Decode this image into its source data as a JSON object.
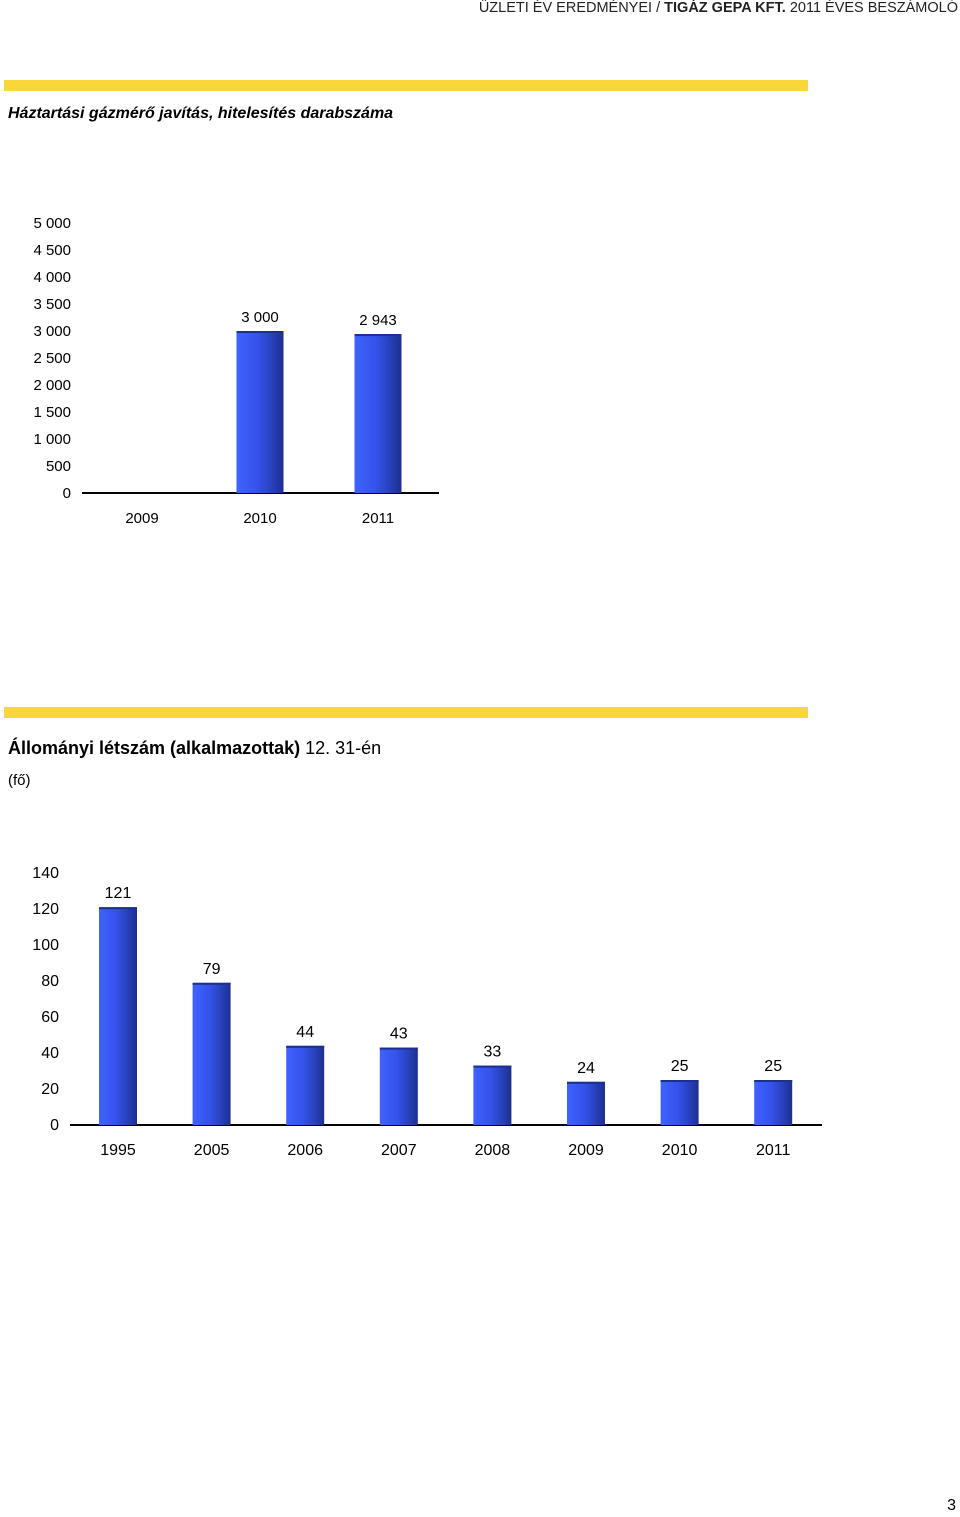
{
  "header": {
    "prefix": "ÜZLETI ÉV EREDMÉNYEI / ",
    "company": "TIGÁZ GEPA KFT.",
    "suffix": " 2011 ÉVES BESZÁMOLÓ"
  },
  "page_number": "3",
  "colors": {
    "accent_rule": "#f9d63a",
    "bar_blue": "#3b5cf0"
  },
  "chart_data": [
    {
      "type": "bar",
      "title": "Háztartási gázmérő javítás, hitelesítés darabszáma",
      "categories": [
        "2009",
        "2010",
        "2011"
      ],
      "values": [
        0,
        3000,
        2943
      ],
      "value_labels": [
        "",
        "3 000",
        "2 943"
      ],
      "yticks": [
        "0",
        "500",
        "1 000",
        "1 500",
        "2 000",
        "2 500",
        "3 000",
        "3 500",
        "4 000",
        "4 500",
        "5 000"
      ],
      "ylim": [
        0,
        5000
      ],
      "grid": false,
      "legend": "none"
    },
    {
      "type": "bar",
      "title": "Állományi létszám (alkalmazottak)",
      "title_suffix": " 12. 31-én",
      "subtitle": "(fő)",
      "categories": [
        "1995",
        "2005",
        "2006",
        "2007",
        "2008",
        "2009",
        "2010",
        "2011"
      ],
      "values": [
        121,
        79,
        44,
        43,
        33,
        24,
        25,
        25
      ],
      "value_labels": [
        "121",
        "79",
        "44",
        "43",
        "33",
        "24",
        "25",
        "25"
      ],
      "yticks": [
        "0",
        "20",
        "40",
        "60",
        "80",
        "100",
        "120",
        "140"
      ],
      "ylim": [
        0,
        140
      ],
      "grid": false,
      "legend": "none"
    }
  ]
}
